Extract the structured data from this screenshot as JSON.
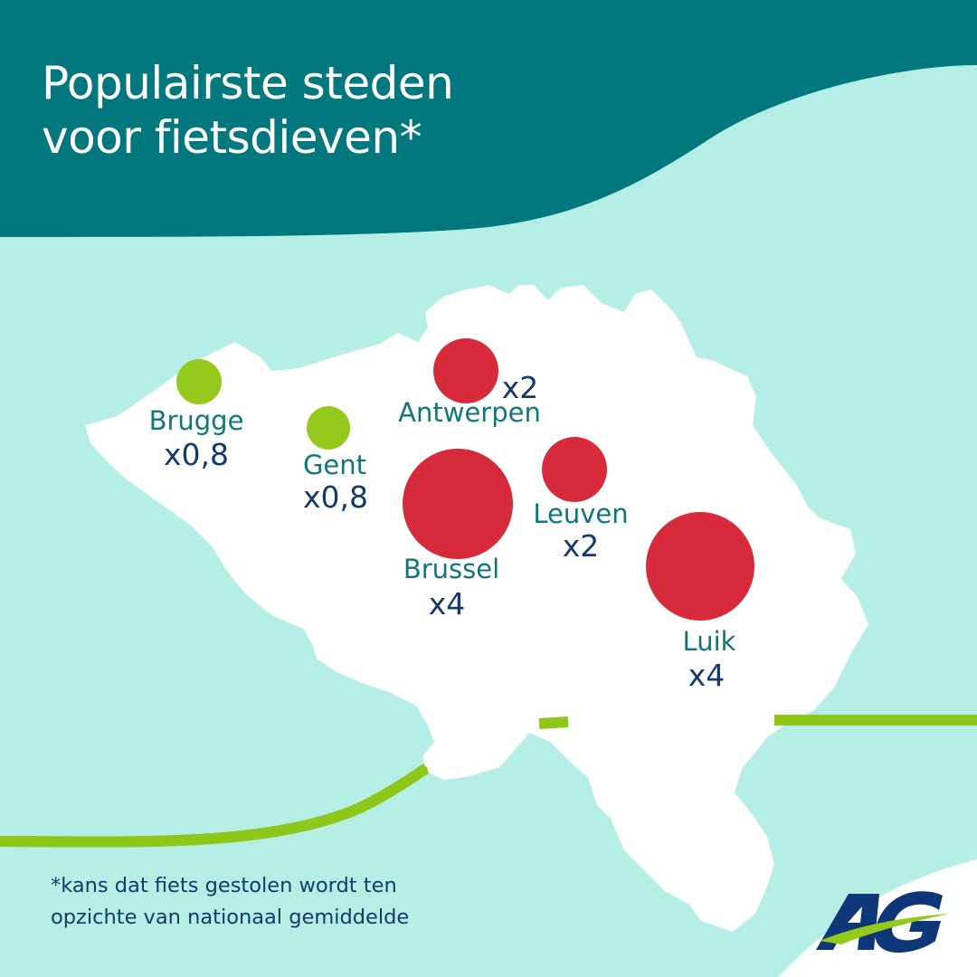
{
  "header": {
    "title_line1": "Populairste steden",
    "title_line2": "voor fietsdieven*"
  },
  "cities": [
    {
      "id": "brugge",
      "name": "Brugge",
      "multiplier": "x0,8",
      "risk_factor": 0.8
    },
    {
      "id": "gent",
      "name": "Gent",
      "multiplier": "x0,8",
      "risk_factor": 0.8
    },
    {
      "id": "antwerpen",
      "name": "Antwerpen",
      "multiplier": "x2",
      "risk_factor": 2
    },
    {
      "id": "brussel",
      "name": "Brussel",
      "multiplier": "x4",
      "risk_factor": 4
    },
    {
      "id": "leuven",
      "name": "Leuven",
      "multiplier": "x2",
      "risk_factor": 2
    },
    {
      "id": "luik",
      "name": "Luik",
      "multiplier": "x4",
      "risk_factor": 4
    }
  ],
  "footnote": {
    "line1": "*kans dat fiets gestolen wordt ten",
    "line2": "opzichte van nationaal gemiddelde"
  },
  "logo": {
    "text": "AG",
    "icon": "ag-logo"
  },
  "colors": {
    "header_bg": "#00787d",
    "background": "#b4eee4",
    "map": "#ffffff",
    "low_risk": "#95c91c",
    "high_risk": "#d72b3c",
    "city_label": "#0f767b",
    "multiplier_text": "#143a6b",
    "green_line": "#8ec71a",
    "logo_navy": "#0d3778"
  }
}
